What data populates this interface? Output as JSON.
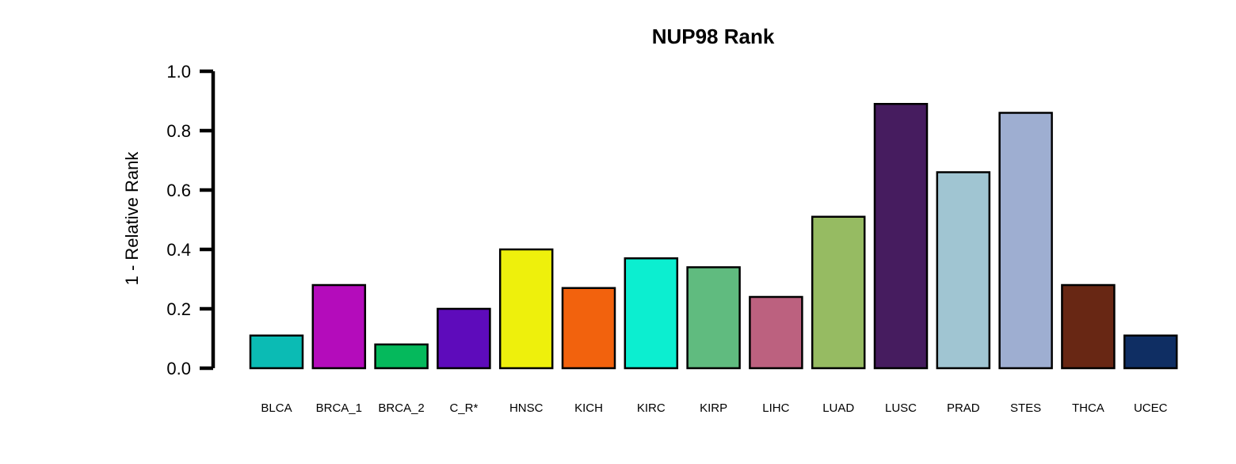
{
  "chart_data": {
    "type": "bar",
    "title": "NUP98 Rank",
    "xlabel": "",
    "ylabel": "1 - Relative Rank",
    "ylim": [
      0,
      1
    ],
    "yticks": [
      "0.0",
      "0.2",
      "0.4",
      "0.6",
      "0.8",
      "1.0"
    ],
    "grid": false,
    "legend": "none",
    "categories": [
      "BLCA",
      "BRCA_1",
      "BRCA_2",
      "C_R*",
      "HNSC",
      "KICH",
      "KIRC",
      "KIRP",
      "LIHC",
      "LUAD",
      "LUSC",
      "PRAD",
      "STES",
      "THCA",
      "UCEC"
    ],
    "values": [
      0.11,
      0.28,
      0.08,
      0.2,
      0.4,
      0.27,
      0.37,
      0.34,
      0.24,
      0.51,
      0.89,
      0.66,
      0.86,
      0.28,
      0.11
    ],
    "colors": [
      "#0bbbb4",
      "#b40cbb",
      "#05b95c",
      "#5e0bbb",
      "#eef00c",
      "#f2620d",
      "#0ceed0",
      "#60bb7f",
      "#bc617f",
      "#96bb62",
      "#461c5f",
      "#a0c5d2",
      "#9eaed1",
      "#682714",
      "#0f2e63"
    ]
  }
}
